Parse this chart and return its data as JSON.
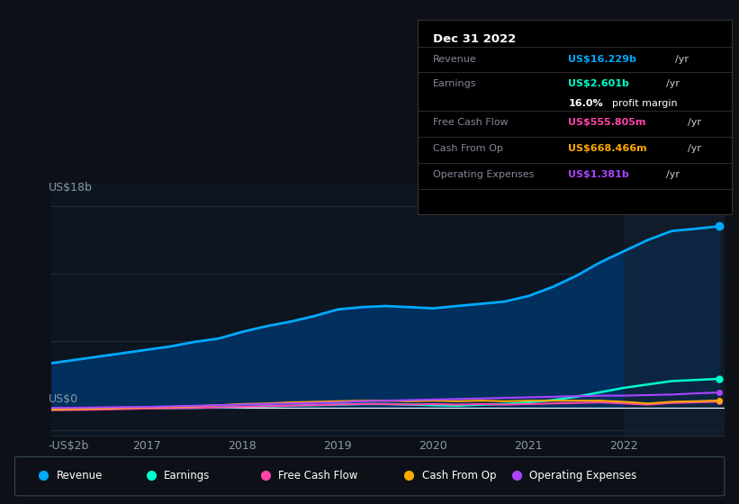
{
  "bg_color": "#0d1117",
  "plot_bg_color": "#0d1520",
  "grid_color": "#1e2d3d",
  "axis_label_color": "#8899aa",
  "ylim": [
    -2.5,
    20
  ],
  "years": [
    2016.0,
    2016.25,
    2016.5,
    2016.75,
    2017.0,
    2017.25,
    2017.5,
    2017.75,
    2018.0,
    2018.25,
    2018.5,
    2018.75,
    2019.0,
    2019.25,
    2019.5,
    2019.75,
    2020.0,
    2020.25,
    2020.5,
    2020.75,
    2021.0,
    2021.25,
    2021.5,
    2021.75,
    2022.0,
    2022.25,
    2022.5,
    2022.75,
    2023.0
  ],
  "revenue": [
    4.0,
    4.3,
    4.6,
    4.9,
    5.2,
    5.5,
    5.9,
    6.2,
    6.8,
    7.3,
    7.7,
    8.2,
    8.8,
    9.0,
    9.1,
    9.0,
    8.9,
    9.1,
    9.3,
    9.5,
    10.0,
    10.8,
    11.8,
    13.0,
    14.0,
    15.0,
    15.8,
    16.0,
    16.229
  ],
  "earnings": [
    -0.05,
    -0.05,
    -0.03,
    -0.02,
    0.0,
    0.0,
    0.02,
    0.05,
    0.1,
    0.15,
    0.2,
    0.25,
    0.3,
    0.35,
    0.35,
    0.3,
    0.25,
    0.2,
    0.3,
    0.35,
    0.5,
    0.7,
    1.0,
    1.4,
    1.8,
    2.1,
    2.4,
    2.5,
    2.601
  ],
  "free_cash_flow": [
    -0.2,
    -0.18,
    -0.15,
    -0.1,
    -0.05,
    -0.02,
    0.0,
    0.05,
    0.1,
    0.15,
    0.2,
    0.25,
    0.3,
    0.35,
    0.35,
    0.3,
    0.35,
    0.3,
    0.35,
    0.3,
    0.35,
    0.4,
    0.45,
    0.5,
    0.4,
    0.3,
    0.45,
    0.5,
    0.556
  ],
  "cash_from_op": [
    -0.15,
    -0.1,
    -0.05,
    0.0,
    0.05,
    0.1,
    0.15,
    0.25,
    0.35,
    0.4,
    0.5,
    0.55,
    0.6,
    0.65,
    0.65,
    0.6,
    0.65,
    0.6,
    0.65,
    0.6,
    0.65,
    0.65,
    0.65,
    0.65,
    0.55,
    0.4,
    0.55,
    0.6,
    0.668
  ],
  "operating_expenses": [
    0.0,
    0.02,
    0.05,
    0.08,
    0.1,
    0.15,
    0.2,
    0.25,
    0.3,
    0.35,
    0.4,
    0.45,
    0.5,
    0.6,
    0.65,
    0.7,
    0.75,
    0.8,
    0.85,
    0.9,
    0.95,
    1.0,
    1.05,
    1.1,
    1.1,
    1.15,
    1.2,
    1.3,
    1.381
  ],
  "revenue_color": "#00aaff",
  "revenue_fill_color": "#003366",
  "earnings_color": "#00ffcc",
  "fcf_color": "#ff44aa",
  "cashop_color": "#ffaa00",
  "opex_color": "#aa44ff",
  "highlight_bg": "#152030",
  "legend_items": [
    "Revenue",
    "Earnings",
    "Free Cash Flow",
    "Cash From Op",
    "Operating Expenses"
  ],
  "legend_colors": [
    "#00aaff",
    "#00ffcc",
    "#ff44aa",
    "#ffaa00",
    "#aa44ff"
  ],
  "tooltip_title": "Dec 31 2022",
  "tooltip_rows": [
    {
      "label": "Revenue",
      "value": "US$16.229b",
      "suffix": " /yr",
      "color": "#00aaff"
    },
    {
      "label": "Earnings",
      "value": "US$2.601b",
      "suffix": " /yr",
      "color": "#00ffcc"
    },
    {
      "label": "",
      "value": "16.0%",
      "suffix": " profit margin",
      "color": "#ffffff"
    },
    {
      "label": "Free Cash Flow",
      "value": "US$555.805m",
      "suffix": " /yr",
      "color": "#ff44aa"
    },
    {
      "label": "Cash From Op",
      "value": "US$668.466m",
      "suffix": " /yr",
      "color": "#ffaa00"
    },
    {
      "label": "Operating Expenses",
      "value": "US$1.381b",
      "suffix": " /yr",
      "color": "#aa44ff"
    }
  ]
}
